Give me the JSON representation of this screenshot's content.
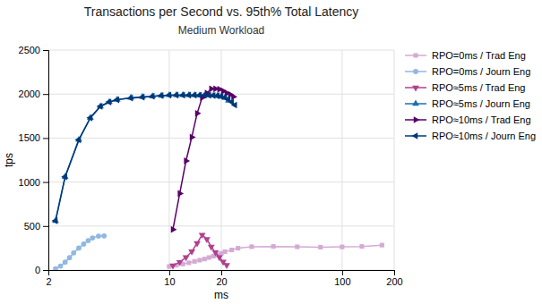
{
  "chart_data": {
    "type": "line",
    "title": "Transactions per Second vs. 95th% Total Latency",
    "subtitle": "Medium Workload",
    "xlabel": "ms",
    "ylabel": "tps",
    "log": "x",
    "xlim": [
      2,
      200
    ],
    "ylim": [
      0,
      2500
    ],
    "xticks": [
      2,
      10,
      20,
      100,
      200
    ],
    "yticks": [
      0,
      500,
      1000,
      1500,
      2000,
      2500
    ],
    "grid": true,
    "legend": "right",
    "series": [
      {
        "name": "RPO=0ms / Trad Eng",
        "color": "#d4aad4",
        "marker": "square",
        "x": [
          10,
          11,
          12,
          13,
          14,
          15,
          16,
          17,
          18,
          19,
          20,
          21,
          23,
          25,
          30,
          40,
          55,
          75,
          100,
          130,
          170
        ],
        "values": [
          40,
          55,
          68,
          82,
          98,
          112,
          125,
          142,
          158,
          172,
          188,
          208,
          228,
          248,
          265,
          268,
          264,
          260,
          263,
          268,
          283
        ]
      },
      {
        "name": "RPO=0ms / Journ Eng",
        "color": "#90b8e0",
        "marker": "circle",
        "x": [
          2.2,
          2.35,
          2.5,
          2.65,
          2.8,
          3.0,
          3.2,
          3.4,
          3.6,
          3.9,
          4.2
        ],
        "values": [
          15,
          45,
          90,
          140,
          195,
          250,
          295,
          335,
          365,
          385,
          388
        ]
      },
      {
        "name": "RPO≈5ms / Trad Eng",
        "color": "#b04090",
        "marker": "triangle-down",
        "x": [
          10.5,
          11.5,
          12.5,
          13.5,
          14.5,
          15.5,
          16.5,
          17.5,
          18.5,
          19.5,
          20.5,
          21.5
        ],
        "values": [
          50,
          90,
          145,
          210,
          305,
          400,
          350,
          265,
          200,
          145,
          95,
          55
        ]
      },
      {
        "name": "RPO≈5ms / Journ Eng",
        "color": "#1a70b0",
        "marker": "triangle-up",
        "x": [
          2.2,
          2.5,
          3.0,
          3.5,
          4.0,
          4.5,
          5.0,
          6.0,
          7.0,
          8.0,
          9.0,
          10.0,
          11.0,
          12.0,
          13.0,
          14.0,
          15.0,
          16.0,
          17.0,
          18.0,
          19.0,
          20.0,
          21.0,
          22.0
        ],
        "values": [
          560,
          1060,
          1480,
          1730,
          1860,
          1910,
          1935,
          1958,
          1968,
          1975,
          1982,
          1988,
          1990,
          1990,
          1990,
          1988,
          1985,
          1985,
          1985,
          1983,
          1980,
          1972,
          1958,
          1925
        ]
      },
      {
        "name": "RPO≈10ms / Trad Eng",
        "color": "#580068",
        "marker": "triangle-right",
        "x": [
          10.5,
          11.5,
          12.5,
          13.5,
          14.5,
          15.5,
          16.5,
          17.5,
          18.5,
          19.5,
          20.5,
          21.5,
          22.5,
          23.5
        ],
        "values": [
          460,
          870,
          1240,
          1510,
          1780,
          1960,
          2010,
          2060,
          2060,
          2055,
          2035,
          2010,
          1995,
          1970
        ]
      },
      {
        "name": "RPO≈10ms / Journ Eng",
        "color": "#003878",
        "marker": "triangle-left",
        "x": [
          2.2,
          2.5,
          3.0,
          3.5,
          4.0,
          4.5,
          5.0,
          6.0,
          7.0,
          8.0,
          9.0,
          10.0,
          11.0,
          12.0,
          13.0,
          14.0,
          15.0,
          16.0,
          17.0,
          18.0,
          19.0,
          20.0,
          21.0,
          22.0,
          23.0,
          24.0
        ],
        "values": [
          560,
          1060,
          1480,
          1730,
          1860,
          1910,
          1935,
          1955,
          1965,
          1975,
          1982,
          1987,
          1988,
          1988,
          1988,
          1988,
          1988,
          1987,
          1986,
          1984,
          1981,
          1974,
          1960,
          1940,
          1910,
          1875
        ]
      }
    ]
  }
}
